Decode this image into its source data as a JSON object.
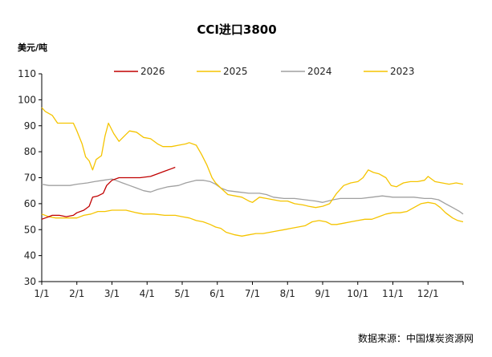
{
  "chart_data": {
    "type": "line",
    "title": "CCI进口3800",
    "ylabel": "美元/吨",
    "source": "数据来源：中国煤炭资源网",
    "ylim": [
      30,
      110
    ],
    "yticks": [
      30,
      40,
      50,
      60,
      70,
      80,
      90,
      100,
      110
    ],
    "x_domain": [
      1,
      13
    ],
    "categories": [
      "1/1",
      "2/1",
      "3/1",
      "4/1",
      "5/1",
      "6/1",
      "7/1",
      "8/1",
      "9/1",
      "10/1",
      "11/1",
      "12/1"
    ],
    "grid": false,
    "legend_position": "top",
    "series": [
      {
        "name": "2026",
        "color": "#c00000",
        "points": [
          [
            1.0,
            54.0
          ],
          [
            1.1,
            54.5
          ],
          [
            1.2,
            55.0
          ],
          [
            1.3,
            55.5
          ],
          [
            1.5,
            55.5
          ],
          [
            1.7,
            55.0
          ],
          [
            1.9,
            55.5
          ],
          [
            2.0,
            56.5
          ],
          [
            2.2,
            57.5
          ],
          [
            2.35,
            59.0
          ],
          [
            2.45,
            62.5
          ],
          [
            2.6,
            63.0
          ],
          [
            2.75,
            64.0
          ],
          [
            2.85,
            67.0
          ],
          [
            3.0,
            69.0
          ],
          [
            3.2,
            70.0
          ],
          [
            3.5,
            70.0
          ],
          [
            3.8,
            70.0
          ],
          [
            4.1,
            70.5
          ],
          [
            4.3,
            71.5
          ],
          [
            4.5,
            72.5
          ],
          [
            4.7,
            73.5
          ],
          [
            4.8,
            74.0
          ]
        ]
      },
      {
        "name": "2025",
        "color": "#f5c400",
        "points": [
          [
            1.0,
            97.0
          ],
          [
            1.1,
            95.5
          ],
          [
            1.3,
            94.0
          ],
          [
            1.45,
            91.0
          ],
          [
            1.7,
            91.0
          ],
          [
            1.9,
            91.0
          ],
          [
            2.0,
            88.0
          ],
          [
            2.15,
            83.0
          ],
          [
            2.25,
            78.0
          ],
          [
            2.35,
            76.5
          ],
          [
            2.45,
            73.0
          ],
          [
            2.55,
            77.0
          ],
          [
            2.7,
            78.5
          ],
          [
            2.8,
            86.0
          ],
          [
            2.9,
            91.0
          ],
          [
            3.05,
            87.0
          ],
          [
            3.2,
            84.0
          ],
          [
            3.35,
            86.0
          ],
          [
            3.5,
            88.0
          ],
          [
            3.7,
            87.5
          ],
          [
            3.9,
            85.5
          ],
          [
            4.1,
            85.0
          ],
          [
            4.3,
            83.0
          ],
          [
            4.45,
            82.0
          ],
          [
            4.7,
            82.0
          ],
          [
            4.9,
            82.5
          ],
          [
            5.1,
            83.0
          ],
          [
            5.2,
            83.5
          ],
          [
            5.4,
            82.5
          ],
          [
            5.55,
            79.0
          ],
          [
            5.7,
            75.0
          ],
          [
            5.85,
            70.0
          ],
          [
            5.95,
            68.0
          ],
          [
            6.1,
            66.0
          ],
          [
            6.3,
            63.5
          ],
          [
            6.5,
            63.0
          ],
          [
            6.7,
            62.5
          ],
          [
            6.9,
            61.0
          ],
          [
            7.0,
            60.5
          ],
          [
            7.2,
            62.5
          ],
          [
            7.4,
            62.0
          ],
          [
            7.6,
            61.5
          ],
          [
            7.8,
            61.0
          ],
          [
            8.0,
            61.0
          ],
          [
            8.2,
            60.0
          ],
          [
            8.45,
            59.5
          ],
          [
            8.6,
            59.0
          ],
          [
            8.8,
            58.5
          ],
          [
            9.0,
            59.0
          ],
          [
            9.2,
            60.0
          ],
          [
            9.4,
            64.0
          ],
          [
            9.6,
            67.0
          ],
          [
            9.8,
            68.0
          ],
          [
            10.0,
            68.5
          ],
          [
            10.15,
            70.0
          ],
          [
            10.3,
            73.0
          ],
          [
            10.45,
            72.0
          ],
          [
            10.6,
            71.5
          ],
          [
            10.8,
            70.0
          ],
          [
            10.95,
            67.0
          ],
          [
            11.1,
            66.5
          ],
          [
            11.3,
            68.0
          ],
          [
            11.5,
            68.5
          ],
          [
            11.7,
            68.5
          ],
          [
            11.9,
            69.0
          ],
          [
            12.0,
            70.5
          ],
          [
            12.1,
            69.5
          ],
          [
            12.2,
            68.5
          ],
          [
            12.4,
            68.0
          ],
          [
            12.6,
            67.5
          ],
          [
            12.8,
            68.0
          ],
          [
            13.0,
            67.5
          ]
        ]
      },
      {
        "name": "2024",
        "color": "#a0a0a0",
        "points": [
          [
            1.0,
            67.5
          ],
          [
            1.2,
            67.0
          ],
          [
            1.5,
            67.0
          ],
          [
            1.8,
            67.0
          ],
          [
            2.0,
            67.5
          ],
          [
            2.3,
            68.0
          ],
          [
            2.5,
            68.5
          ],
          [
            2.75,
            69.0
          ],
          [
            3.0,
            69.5
          ],
          [
            3.1,
            69.0
          ],
          [
            3.3,
            68.0
          ],
          [
            3.5,
            67.0
          ],
          [
            3.7,
            66.0
          ],
          [
            3.9,
            65.0
          ],
          [
            4.1,
            64.5
          ],
          [
            4.3,
            65.5
          ],
          [
            4.6,
            66.5
          ],
          [
            4.9,
            67.0
          ],
          [
            5.1,
            68.0
          ],
          [
            5.4,
            69.0
          ],
          [
            5.6,
            69.0
          ],
          [
            5.8,
            68.5
          ],
          [
            5.95,
            67.5
          ],
          [
            6.1,
            66.0
          ],
          [
            6.3,
            65.0
          ],
          [
            6.6,
            64.5
          ],
          [
            6.9,
            64.0
          ],
          [
            7.2,
            64.0
          ],
          [
            7.4,
            63.5
          ],
          [
            7.6,
            62.5
          ],
          [
            7.9,
            62.0
          ],
          [
            8.2,
            62.0
          ],
          [
            8.5,
            61.5
          ],
          [
            8.8,
            61.0
          ],
          [
            9.0,
            60.5
          ],
          [
            9.3,
            61.5
          ],
          [
            9.5,
            62.0
          ],
          [
            9.8,
            62.0
          ],
          [
            10.1,
            62.0
          ],
          [
            10.4,
            62.5
          ],
          [
            10.7,
            63.0
          ],
          [
            11.0,
            62.5
          ],
          [
            11.3,
            62.5
          ],
          [
            11.6,
            62.5
          ],
          [
            11.9,
            62.0
          ],
          [
            12.1,
            62.0
          ],
          [
            12.3,
            61.5
          ],
          [
            12.5,
            60.0
          ],
          [
            12.7,
            58.5
          ],
          [
            12.9,
            57.0
          ],
          [
            13.0,
            56.0
          ]
        ]
      },
      {
        "name": "2023",
        "color": "#f5c400",
        "points": [
          [
            1.0,
            56.0
          ],
          [
            1.2,
            55.0
          ],
          [
            1.4,
            54.5
          ],
          [
            1.6,
            54.5
          ],
          [
            1.8,
            54.5
          ],
          [
            2.0,
            54.5
          ],
          [
            2.2,
            55.5
          ],
          [
            2.4,
            56.0
          ],
          [
            2.6,
            57.0
          ],
          [
            2.8,
            57.0
          ],
          [
            3.0,
            57.5
          ],
          [
            3.2,
            57.5
          ],
          [
            3.4,
            57.5
          ],
          [
            3.55,
            57.0
          ],
          [
            3.7,
            56.5
          ],
          [
            3.9,
            56.0
          ],
          [
            4.2,
            56.0
          ],
          [
            4.5,
            55.5
          ],
          [
            4.8,
            55.5
          ],
          [
            5.0,
            55.0
          ],
          [
            5.2,
            54.5
          ],
          [
            5.4,
            53.5
          ],
          [
            5.6,
            53.0
          ],
          [
            5.8,
            52.0
          ],
          [
            5.95,
            51.0
          ],
          [
            6.1,
            50.5
          ],
          [
            6.25,
            49.0
          ],
          [
            6.5,
            48.0
          ],
          [
            6.7,
            47.5
          ],
          [
            6.9,
            48.0
          ],
          [
            7.1,
            48.5
          ],
          [
            7.3,
            48.5
          ],
          [
            7.5,
            49.0
          ],
          [
            7.7,
            49.5
          ],
          [
            7.9,
            50.0
          ],
          [
            8.1,
            50.5
          ],
          [
            8.3,
            51.0
          ],
          [
            8.5,
            51.5
          ],
          [
            8.7,
            53.0
          ],
          [
            8.9,
            53.5
          ],
          [
            9.1,
            53.0
          ],
          [
            9.25,
            52.0
          ],
          [
            9.4,
            52.0
          ],
          [
            9.6,
            52.5
          ],
          [
            9.8,
            53.0
          ],
          [
            10.0,
            53.5
          ],
          [
            10.2,
            54.0
          ],
          [
            10.4,
            54.0
          ],
          [
            10.6,
            55.0
          ],
          [
            10.8,
            56.0
          ],
          [
            11.0,
            56.5
          ],
          [
            11.2,
            56.5
          ],
          [
            11.4,
            57.0
          ],
          [
            11.6,
            58.5
          ],
          [
            11.8,
            60.0
          ],
          [
            12.0,
            60.5
          ],
          [
            12.2,
            60.0
          ],
          [
            12.35,
            58.5
          ],
          [
            12.5,
            56.5
          ],
          [
            12.7,
            54.5
          ],
          [
            12.85,
            53.5
          ],
          [
            13.0,
            53.0
          ]
        ]
      }
    ]
  }
}
